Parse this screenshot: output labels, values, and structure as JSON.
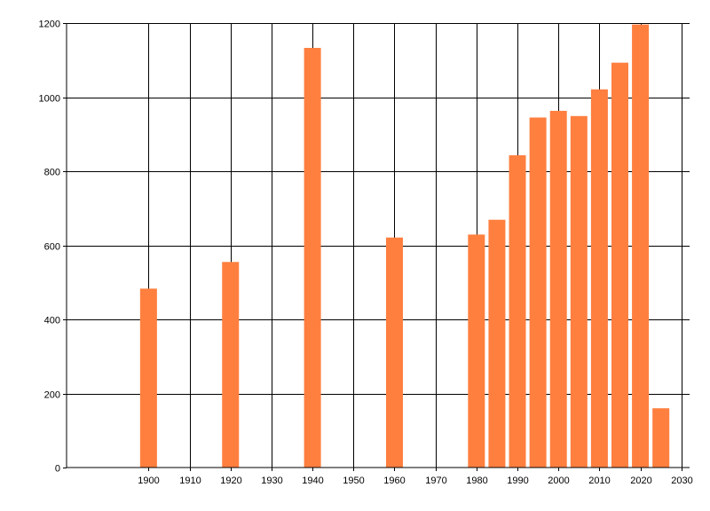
{
  "chart_data": {
    "type": "bar",
    "title": "",
    "xlabel": "",
    "ylabel": "",
    "xlim": [
      1880,
      2032
    ],
    "ylim": [
      0,
      1200
    ],
    "x_ticks": [
      1900,
      1910,
      1920,
      1930,
      1940,
      1950,
      1960,
      1970,
      1980,
      1990,
      2000,
      2010,
      2020,
      2030
    ],
    "y_ticks": [
      0,
      200,
      400,
      600,
      800,
      1000,
      1200
    ],
    "x_tick_labels": [
      "1900",
      "1910",
      "1920",
      "1930",
      "1940",
      "1950",
      "1960",
      "1970",
      "1980",
      "1990",
      "2000",
      "2010",
      "2020",
      "2030"
    ],
    "y_tick_labels": [
      "0",
      "200",
      "400",
      "600",
      "800",
      "1000",
      "1200"
    ],
    "grid": true,
    "bar_color": "#FF7F3F",
    "series": [
      {
        "x": [
          1900,
          1920,
          1940,
          1960,
          1980,
          1985,
          1990,
          1995,
          2000,
          2005,
          2010,
          2015,
          2020,
          2025
        ],
        "values": [
          483,
          555,
          1133,
          621,
          629,
          669,
          843,
          945,
          963,
          949,
          1021,
          1093,
          1196,
          160
        ]
      }
    ]
  }
}
